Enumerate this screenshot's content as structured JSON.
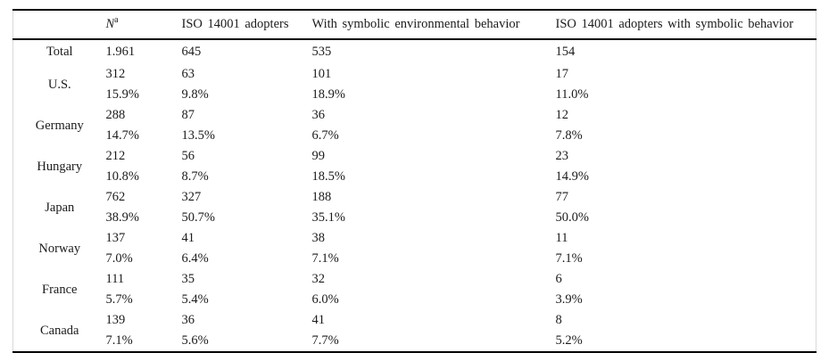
{
  "table": {
    "header": {
      "n_label": "N",
      "n_superscript": "a",
      "col_iso": "ISO 14001 adopters",
      "col_symbolic": "With symbolic environmental behavior",
      "col_iso_symbolic": "ISO 14001 adopters with symbolic behavior"
    },
    "total": {
      "label": "Total",
      "n": "1.961",
      "iso": "645",
      "symbolic": "535",
      "iso_symbolic": "154"
    },
    "rows": [
      {
        "label": "U.S.",
        "n": "312",
        "n_pct": "15.9%",
        "iso": "63",
        "iso_pct": "9.8%",
        "symbolic": "101",
        "symbolic_pct": "18.9%",
        "iso_symbolic": "17",
        "iso_symbolic_pct": "11.0%"
      },
      {
        "label": "Germany",
        "n": "288",
        "n_pct": "14.7%",
        "iso": "87",
        "iso_pct": "13.5%",
        "symbolic": "36",
        "symbolic_pct": "6.7%",
        "iso_symbolic": "12",
        "iso_symbolic_pct": "7.8%"
      },
      {
        "label": "Hungary",
        "n": "212",
        "n_pct": "10.8%",
        "iso": "56",
        "iso_pct": "8.7%",
        "symbolic": "99",
        "symbolic_pct": "18.5%",
        "iso_symbolic": "23",
        "iso_symbolic_pct": "14.9%"
      },
      {
        "label": "Japan",
        "n": "762",
        "n_pct": "38.9%",
        "iso": "327",
        "iso_pct": "50.7%",
        "symbolic": "188",
        "symbolic_pct": "35.1%",
        "iso_symbolic": "77",
        "iso_symbolic_pct": "50.0%"
      },
      {
        "label": "Norway",
        "n": "137",
        "n_pct": "7.0%",
        "iso": "41",
        "iso_pct": "6.4%",
        "symbolic": "38",
        "symbolic_pct": "7.1%",
        "iso_symbolic": "11",
        "iso_symbolic_pct": "7.1%"
      },
      {
        "label": "France",
        "n": "111",
        "n_pct": "5.7%",
        "iso": "35",
        "iso_pct": "5.4%",
        "symbolic": "32",
        "symbolic_pct": "6.0%",
        "iso_symbolic": "6",
        "iso_symbolic_pct": "3.9%"
      },
      {
        "label": "Canada",
        "n": "139",
        "n_pct": "7.1%",
        "iso": "36",
        "iso_pct": "5.6%",
        "symbolic": "41",
        "symbolic_pct": "7.7%",
        "iso_symbolic": "8",
        "iso_symbolic_pct": "5.2%"
      }
    ]
  }
}
